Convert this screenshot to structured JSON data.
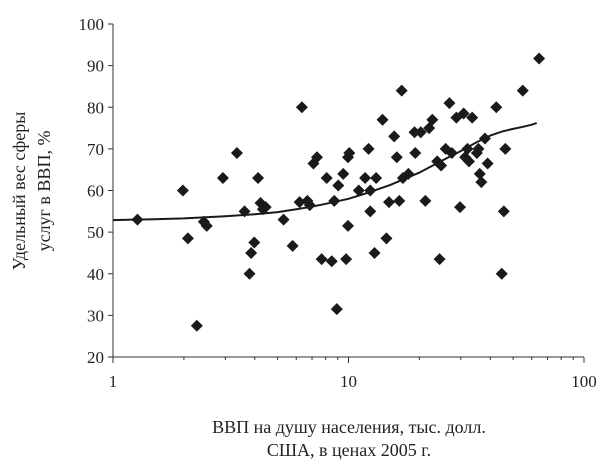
{
  "chart_data": {
    "type": "scatter",
    "xscale": "log",
    "xlim": [
      1,
      100
    ],
    "ylim": [
      20,
      100
    ],
    "grid": false,
    "legend": "none",
    "xlabel_lines": [
      "ВВП на душу населения, тыс. долл.",
      "США, в ценах 2005 г."
    ],
    "ylabel_lines": [
      "Удельный вес сферы",
      "услуг в ВВП, %"
    ],
    "xticks": [
      1,
      10,
      100
    ],
    "xtick_labels": [
      "1",
      "10",
      "100"
    ],
    "yticks": [
      20,
      30,
      40,
      50,
      60,
      70,
      80,
      90,
      100
    ],
    "ytick_labels": [
      "20",
      "30",
      "40",
      "50",
      "60",
      "70",
      "80",
      "90",
      "100"
    ],
    "colors": {
      "axis": "#333333",
      "marker": "#1a1a1a",
      "trend": "#1a1a1a"
    },
    "series": [
      {
        "kind": "points",
        "marker": "diamond",
        "points": [
          [
            1.27,
            53
          ],
          [
            1.98,
            60
          ],
          [
            2.08,
            48.5
          ],
          [
            2.27,
            27.5
          ],
          [
            2.43,
            52.5
          ],
          [
            2.5,
            51.5
          ],
          [
            2.93,
            63
          ],
          [
            3.36,
            69
          ],
          [
            3.62,
            55
          ],
          [
            3.8,
            40
          ],
          [
            3.86,
            45
          ],
          [
            3.98,
            47.5
          ],
          [
            4.13,
            63
          ],
          [
            4.23,
            57
          ],
          [
            4.33,
            55.5
          ],
          [
            4.45,
            56
          ],
          [
            5.3,
            53
          ],
          [
            5.79,
            46.7
          ],
          [
            6.2,
            57.2
          ],
          [
            6.34,
            80
          ],
          [
            6.69,
            57.5
          ],
          [
            6.85,
            56.5
          ],
          [
            7.1,
            66.5
          ],
          [
            7.35,
            68
          ],
          [
            7.69,
            43.5
          ],
          [
            8.08,
            63
          ],
          [
            8.49,
            43
          ],
          [
            8.7,
            57.5
          ],
          [
            8.92,
            31.5
          ],
          [
            9.05,
            61.2
          ],
          [
            9.5,
            64
          ],
          [
            9.77,
            43.5
          ],
          [
            9.95,
            68
          ],
          [
            10.08,
            69
          ],
          [
            9.95,
            51.5
          ],
          [
            11.06,
            60
          ],
          [
            11.76,
            63
          ],
          [
            12.17,
            70
          ],
          [
            12.37,
            55
          ],
          [
            12.37,
            60
          ],
          [
            12.9,
            45
          ],
          [
            13.1,
            63
          ],
          [
            13.95,
            77
          ],
          [
            14.49,
            48.5
          ],
          [
            14.86,
            57.2
          ],
          [
            15.63,
            73
          ],
          [
            16.04,
            68
          ],
          [
            16.43,
            57.5
          ],
          [
            16.82,
            84
          ],
          [
            17.03,
            63
          ],
          [
            17.96,
            64
          ],
          [
            19.07,
            74
          ],
          [
            19.21,
            69
          ],
          [
            20.27,
            74
          ],
          [
            21.2,
            57.5
          ],
          [
            22.0,
            75
          ],
          [
            22.7,
            77
          ],
          [
            23.8,
            67
          ],
          [
            24.36,
            43.5
          ],
          [
            24.73,
            66
          ],
          [
            25.86,
            70
          ],
          [
            26.83,
            81
          ],
          [
            27.47,
            69
          ],
          [
            28.71,
            77.5
          ],
          [
            29.76,
            56
          ],
          [
            30.82,
            78.5
          ],
          [
            31.28,
            68
          ],
          [
            32.0,
            70
          ],
          [
            32.48,
            67
          ],
          [
            33.51,
            77.5
          ],
          [
            35.08,
            69
          ],
          [
            35.61,
            70
          ],
          [
            36.1,
            64
          ],
          [
            36.65,
            62
          ],
          [
            37.96,
            72.5
          ],
          [
            38.97,
            66.5
          ],
          [
            42.41,
            80
          ],
          [
            44.74,
            40
          ],
          [
            45.66,
            55
          ],
          [
            46.35,
            70
          ],
          [
            54.95,
            84
          ],
          [
            64.46,
            91.7
          ]
        ]
      },
      {
        "kind": "trend",
        "line": "solid",
        "curve": [
          [
            1,
            52.9
          ],
          [
            1.5,
            53.1
          ],
          [
            2,
            53.3
          ],
          [
            3,
            53.8
          ],
          [
            4,
            54.3
          ],
          [
            5,
            54.8
          ],
          [
            6,
            55.5
          ],
          [
            7,
            56.1
          ],
          [
            8,
            56.8
          ],
          [
            10,
            58
          ],
          [
            12,
            59.4
          ],
          [
            15,
            61.3
          ],
          [
            20,
            64.3
          ],
          [
            25,
            67.2
          ],
          [
            30,
            69.5
          ],
          [
            35,
            71.6
          ],
          [
            40,
            73.2
          ],
          [
            45,
            74.2
          ],
          [
            50,
            74.8
          ],
          [
            55,
            75.3
          ],
          [
            60,
            75.8
          ],
          [
            63,
            76.2
          ]
        ]
      }
    ]
  }
}
